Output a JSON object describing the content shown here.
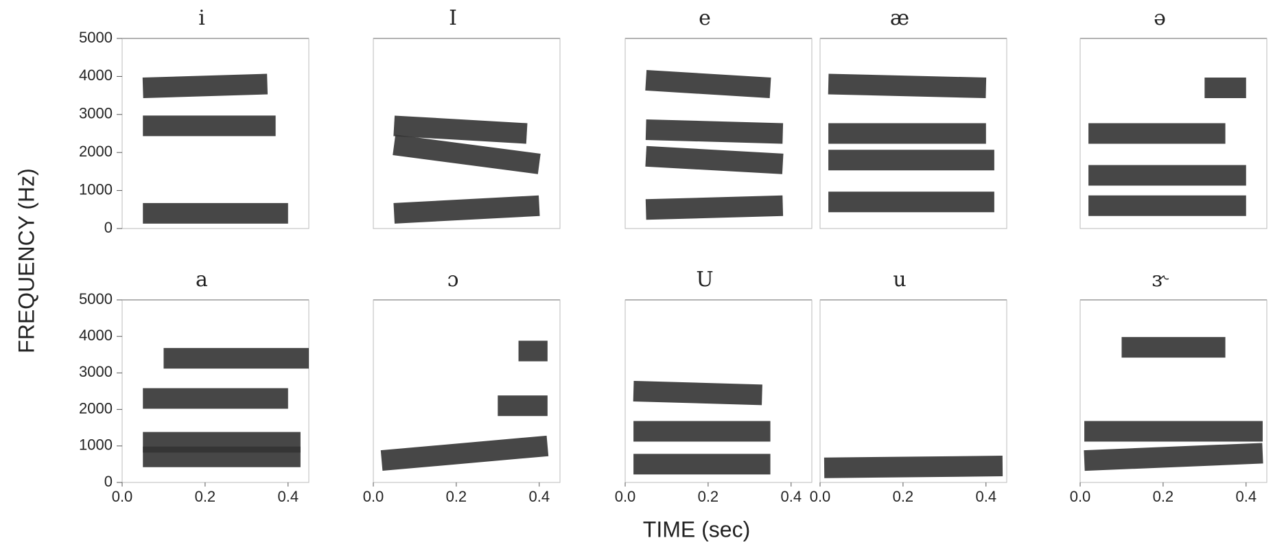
{
  "ylabel": "FREQUENCY (Hz)",
  "xlabel": "TIME (sec)",
  "chart_data": [
    {
      "type": "spectrogram",
      "title": "i",
      "xlim": [
        0,
        0.45
      ],
      "ylim": [
        0,
        5000
      ],
      "yticks": [
        0,
        1000,
        2000,
        3000,
        4000,
        5000
      ],
      "color": "#333333",
      "series": [
        {
          "x": [
            0.05,
            0.4
          ],
          "values": [
            400,
            400
          ]
        },
        {
          "x": [
            0.05,
            0.37
          ],
          "values": [
            2700,
            2700
          ]
        },
        {
          "x": [
            0.05,
            0.35
          ],
          "values": [
            3700,
            3800
          ]
        }
      ]
    },
    {
      "type": "spectrogram",
      "title": "I",
      "xlim": [
        0,
        0.45
      ],
      "ylim": [
        0,
        5000
      ],
      "color": "#333333",
      "series": [
        {
          "x": [
            0.05,
            0.4
          ],
          "values": [
            400,
            600
          ]
        },
        {
          "x": [
            0.05,
            0.4
          ],
          "values": [
            2200,
            1700
          ]
        },
        {
          "x": [
            0.05,
            0.37
          ],
          "values": [
            2700,
            2500
          ]
        }
      ]
    },
    {
      "type": "spectrogram",
      "title": "e",
      "xlim": [
        0,
        0.45
      ],
      "ylim": [
        0,
        5000
      ],
      "color": "#333333",
      "series": [
        {
          "x": [
            0.05,
            0.38
          ],
          "values": [
            500,
            600
          ]
        },
        {
          "x": [
            0.05,
            0.38
          ],
          "values": [
            1900,
            1700
          ]
        },
        {
          "x": [
            0.05,
            0.38
          ],
          "values": [
            2600,
            2500
          ]
        },
        {
          "x": [
            0.05,
            0.35
          ],
          "values": [
            3900,
            3700
          ]
        }
      ]
    },
    {
      "type": "spectrogram",
      "title": "æ",
      "xlim": [
        0,
        0.45
      ],
      "ylim": [
        0,
        5000
      ],
      "color": "#333333",
      "series": [
        {
          "x": [
            0.02,
            0.42
          ],
          "values": [
            700,
            700
          ]
        },
        {
          "x": [
            0.02,
            0.42
          ],
          "values": [
            1800,
            1800
          ]
        },
        {
          "x": [
            0.02,
            0.4
          ],
          "values": [
            2500,
            2500
          ]
        },
        {
          "x": [
            0.02,
            0.4
          ],
          "values": [
            3800,
            3700
          ]
        }
      ]
    },
    {
      "type": "spectrogram",
      "title": "ə",
      "xlim": [
        0,
        0.45
      ],
      "ylim": [
        0,
        5000
      ],
      "color": "#333333",
      "series": [
        {
          "x": [
            0.02,
            0.4
          ],
          "values": [
            600,
            600
          ]
        },
        {
          "x": [
            0.02,
            0.4
          ],
          "values": [
            1400,
            1400
          ]
        },
        {
          "x": [
            0.02,
            0.35
          ],
          "values": [
            2500,
            2500
          ]
        },
        {
          "x": [
            0.3,
            0.4
          ],
          "values": [
            3700,
            3700
          ]
        }
      ]
    },
    {
      "type": "spectrogram",
      "title": "a",
      "xlim": [
        0,
        0.45
      ],
      "ylim": [
        0,
        5000
      ],
      "color": "#333333",
      "xticks": [
        {
          "value": 0,
          "label": "0.0"
        },
        {
          "value": 0.2,
          "label": "0.2"
        },
        {
          "value": 0.4,
          "label": "0.4"
        }
      ],
      "yticks": [
        0,
        1000,
        2000,
        3000,
        4000,
        5000
      ],
      "series": [
        {
          "x": [
            0.05,
            0.43
          ],
          "values": [
            700,
            700
          ]
        },
        {
          "x": [
            0.05,
            0.43
          ],
          "values": [
            1100,
            1100
          ]
        },
        {
          "x": [
            0.05,
            0.4
          ],
          "values": [
            2300,
            2300
          ]
        },
        {
          "x": [
            0.1,
            0.45
          ],
          "values": [
            3400,
            3400
          ]
        }
      ]
    },
    {
      "type": "spectrogram",
      "title": "ɔ",
      "xlim": [
        0,
        0.45
      ],
      "ylim": [
        0,
        5000
      ],
      "color": "#333333",
      "xticks": [
        {
          "value": 0,
          "label": "0.0"
        },
        {
          "value": 0.2,
          "label": "0.2"
        },
        {
          "value": 0.4,
          "label": "0.4"
        }
      ],
      "series": [
        {
          "x": [
            0.02,
            0.42
          ],
          "values": [
            600,
            1000
          ]
        },
        {
          "x": [
            0.3,
            0.42
          ],
          "values": [
            2100,
            2100
          ]
        },
        {
          "x": [
            0.35,
            0.42
          ],
          "values": [
            3600,
            3600
          ]
        }
      ]
    },
    {
      "type": "spectrogram",
      "title": "U",
      "xlim": [
        0,
        0.45
      ],
      "ylim": [
        0,
        5000
      ],
      "color": "#333333",
      "xticks": [
        {
          "value": 0,
          "label": "0.0"
        },
        {
          "value": 0.2,
          "label": "0.2"
        },
        {
          "value": 0.4,
          "label": "0.4"
        }
      ],
      "series": [
        {
          "x": [
            0.02,
            0.35
          ],
          "values": [
            500,
            500
          ]
        },
        {
          "x": [
            0.02,
            0.35
          ],
          "values": [
            1400,
            1400
          ]
        },
        {
          "x": [
            0.02,
            0.33
          ],
          "values": [
            2500,
            2400
          ]
        }
      ]
    },
    {
      "type": "spectrogram",
      "title": "u",
      "xlim": [
        0,
        0.45
      ],
      "ylim": [
        0,
        5000
      ],
      "color": "#333333",
      "xticks": [
        {
          "value": 0,
          "label": "0.0"
        },
        {
          "value": 0.2,
          "label": "0.2"
        },
        {
          "value": 0.4,
          "label": "0.4"
        }
      ],
      "series": [
        {
          "x": [
            0.01,
            0.44
          ],
          "values": [
            400,
            450
          ]
        }
      ]
    },
    {
      "type": "spectrogram",
      "title": "ɝ",
      "xlim": [
        0,
        0.45
      ],
      "ylim": [
        0,
        5000
      ],
      "color": "#333333",
      "xticks": [
        {
          "value": 0,
          "label": "0.0"
        },
        {
          "value": 0.2,
          "label": "0.2"
        },
        {
          "value": 0.4,
          "label": "0.4"
        }
      ],
      "series": [
        {
          "x": [
            0.01,
            0.44
          ],
          "values": [
            600,
            800
          ]
        },
        {
          "x": [
            0.01,
            0.44
          ],
          "values": [
            1400,
            1400
          ]
        },
        {
          "x": [
            0.1,
            0.35
          ],
          "values": [
            3700,
            3700
          ]
        }
      ]
    }
  ]
}
